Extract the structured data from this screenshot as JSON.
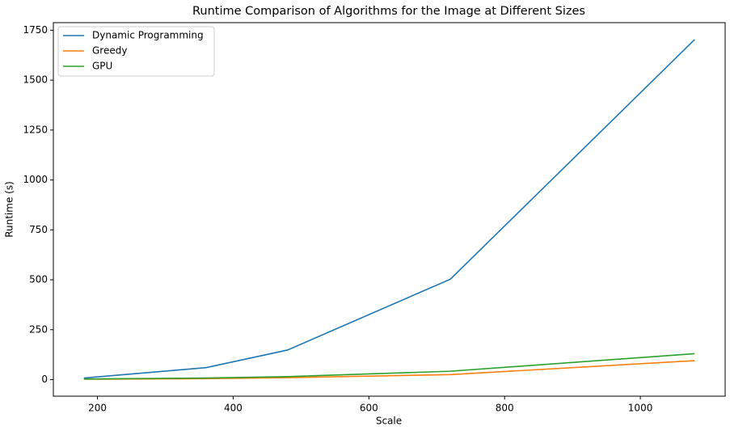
{
  "chart_data": {
    "type": "line",
    "title": "Runtime Comparison of Algorithms for the Image at Different Sizes",
    "x_label": "Scale",
    "y_label": "Runtime (s)",
    "x": [
      180,
      360,
      480,
      720,
      1080
    ],
    "series": [
      {
        "name": "Dynamic Programming",
        "color": "#1f77b4",
        "values": [
          8,
          60,
          148,
          503,
          1703
        ]
      },
      {
        "name": "Greedy",
        "color": "#ff7f0e",
        "values": [
          2,
          5,
          10,
          25,
          95
        ]
      },
      {
        "name": "GPU",
        "color": "#2ca02c",
        "values": [
          3,
          8,
          15,
          42,
          130
        ]
      }
    ],
    "xlim": [
      135,
      1125
    ],
    "xticks": [
      200,
      400,
      600,
      800,
      1000
    ],
    "ylim": [
      -83,
      1788
    ],
    "yticks": [
      0,
      250,
      500,
      750,
      1000,
      1250,
      1500,
      1750
    ],
    "legend": "upper left",
    "grid": false
  }
}
